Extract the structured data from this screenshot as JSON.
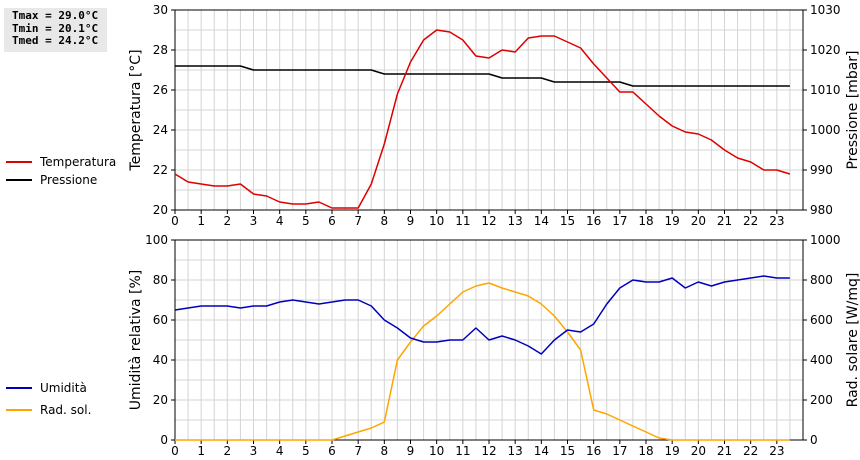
{
  "stats": [
    "Tmax = 29.0°C",
    "Tmin = 20.1°C",
    "Tmed = 24.2°C"
  ],
  "colors": {
    "temp": "#dd0000",
    "press": "#000000",
    "hum": "#0000bb",
    "rad": "#ffa500",
    "grid": "#d4d4d4"
  },
  "chart_data": [
    {
      "type": "line",
      "x": [
        0,
        0.5,
        1,
        1.5,
        2,
        2.5,
        3,
        3.5,
        4,
        4.5,
        5,
        5.5,
        6,
        6.5,
        7,
        7.5,
        8,
        8.5,
        9,
        9.5,
        10,
        10.5,
        11,
        11.5,
        12,
        12.5,
        13,
        13.5,
        14,
        14.5,
        15,
        15.5,
        16,
        16.5,
        17,
        17.5,
        18,
        18.5,
        19,
        19.5,
        20,
        20.5,
        21,
        21.5,
        22,
        22.5,
        23,
        23.5
      ],
      "xticks": [
        "0",
        "1",
        "2",
        "3",
        "4",
        "5",
        "6",
        "7",
        "8",
        "9",
        "10",
        "11",
        "12",
        "13",
        "14",
        "15",
        "16",
        "17",
        "18",
        "19",
        "20",
        "21",
        "22",
        "23"
      ],
      "ylabel_left": "Temperatura [°C]",
      "ylabel_right": "Pressione [mbar]",
      "ylim_left": [
        20,
        30
      ],
      "ylim_right": [
        980,
        1030
      ],
      "yticks_left": [
        "20",
        "22",
        "24",
        "26",
        "28",
        "30"
      ],
      "yticks_right": [
        "980",
        "990",
        "1000",
        "1010",
        "1020",
        "1030"
      ],
      "series": [
        {
          "name": "Temperatura",
          "axis": "left",
          "values": [
            21.8,
            21.4,
            21.3,
            21.2,
            21.2,
            21.3,
            20.8,
            20.7,
            20.4,
            20.3,
            20.3,
            20.4,
            20.1,
            20.1,
            20.1,
            21.3,
            23.3,
            25.8,
            27.4,
            28.5,
            29.0,
            28.9,
            28.5,
            27.7,
            27.6,
            28.0,
            27.9,
            28.6,
            28.7,
            28.7,
            28.4,
            28.1,
            27.3,
            26.6,
            25.9,
            25.9,
            25.3,
            24.7,
            24.2,
            23.9,
            23.8,
            23.5,
            23.0,
            22.6,
            22.4,
            22.0,
            22.0,
            21.8
          ]
        },
        {
          "name": "Pressione",
          "axis": "right",
          "values": [
            1016,
            1016,
            1016,
            1016,
            1016,
            1016,
            1015,
            1015,
            1015,
            1015,
            1015,
            1015,
            1015,
            1015,
            1015,
            1015,
            1014,
            1014,
            1014,
            1014,
            1014,
            1014,
            1014,
            1014,
            1014,
            1013,
            1013,
            1013,
            1013,
            1012,
            1012,
            1012,
            1012,
            1012,
            1012,
            1011,
            1011,
            1011,
            1011,
            1011,
            1011,
            1011,
            1011,
            1011,
            1011,
            1011,
            1011,
            1011
          ]
        }
      ]
    },
    {
      "type": "line",
      "x": [
        0,
        0.5,
        1,
        1.5,
        2,
        2.5,
        3,
        3.5,
        4,
        4.5,
        5,
        5.5,
        6,
        6.5,
        7,
        7.5,
        8,
        8.5,
        9,
        9.5,
        10,
        10.5,
        11,
        11.5,
        12,
        12.5,
        13,
        13.5,
        14,
        14.5,
        15,
        15.5,
        16,
        16.5,
        17,
        17.5,
        18,
        18.5,
        19,
        19.5,
        20,
        20.5,
        21,
        21.5,
        22,
        22.5,
        23,
        23.5
      ],
      "xticks": [
        "0",
        "1",
        "2",
        "3",
        "4",
        "5",
        "6",
        "7",
        "8",
        "9",
        "10",
        "11",
        "12",
        "13",
        "14",
        "15",
        "16",
        "17",
        "18",
        "19",
        "20",
        "21",
        "22",
        "23"
      ],
      "ylabel_left": "Umidità relativa [%]",
      "ylabel_right": "Rad. solare [W/mq]",
      "ylim_left": [
        0,
        100
      ],
      "ylim_right": [
        0,
        1000
      ],
      "yticks_left": [
        "0",
        "20",
        "40",
        "60",
        "80",
        "100"
      ],
      "yticks_right": [
        "0",
        "200",
        "400",
        "600",
        "800",
        "1000"
      ],
      "series": [
        {
          "name": "Umidità",
          "axis": "left",
          "values": [
            65,
            66,
            67,
            67,
            67,
            66,
            67,
            67,
            69,
            70,
            69,
            68,
            69,
            70,
            70,
            67,
            60,
            56,
            51,
            49,
            49,
            50,
            50,
            56,
            50,
            52,
            50,
            47,
            43,
            50,
            55,
            54,
            58,
            68,
            76,
            80,
            79,
            79,
            81,
            76,
            79,
            77,
            79,
            80,
            81,
            82,
            81,
            81
          ]
        },
        {
          "name": "Rad. sol.",
          "axis": "right",
          "values": [
            0,
            0,
            0,
            0,
            0,
            0,
            0,
            0,
            0,
            0,
            0,
            0,
            0,
            20,
            40,
            60,
            90,
            400,
            490,
            570,
            620,
            680,
            740,
            770,
            785,
            760,
            740,
            720,
            680,
            620,
            540,
            450,
            150,
            130,
            100,
            70,
            40,
            10,
            0,
            0,
            0,
            0,
            0,
            0,
            0,
            0,
            0,
            0
          ]
        }
      ]
    }
  ]
}
